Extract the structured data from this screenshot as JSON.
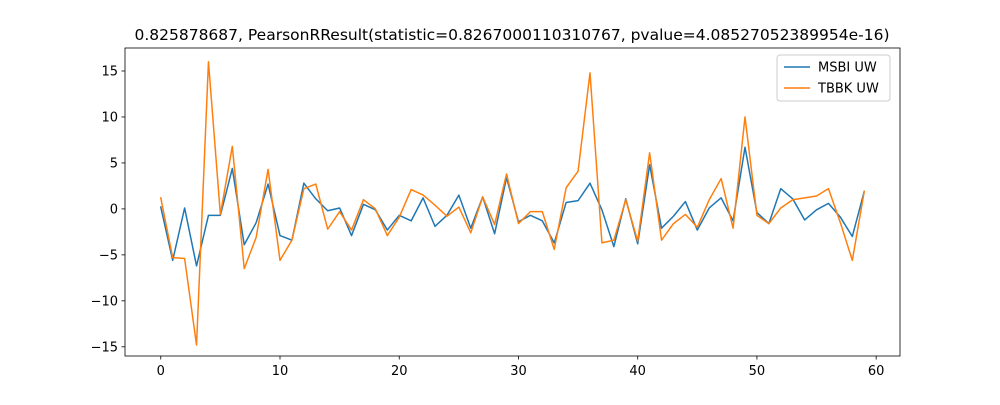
{
  "chart_data": {
    "type": "line",
    "title": "0.825878687, PearsonRResult(statistic=0.8267000110310767, pvalue=4.08527052389954e-16)",
    "xlabel": "",
    "ylabel": "",
    "xlim": [
      -3,
      62
    ],
    "ylim": [
      -16.0,
      17.5
    ],
    "xticks": [
      0,
      10,
      20,
      30,
      40,
      50,
      60
    ],
    "yticks": [
      -15,
      -10,
      -5,
      0,
      5,
      10,
      15
    ],
    "grid": false,
    "legend_position": "top-right",
    "x": [
      0,
      1,
      2,
      3,
      4,
      5,
      6,
      7,
      8,
      9,
      10,
      11,
      12,
      13,
      14,
      15,
      16,
      17,
      18,
      19,
      20,
      21,
      22,
      23,
      24,
      25,
      26,
      27,
      28,
      29,
      30,
      31,
      32,
      33,
      34,
      35,
      36,
      37,
      38,
      39,
      40,
      41,
      42,
      43,
      44,
      45,
      46,
      47,
      48,
      49,
      50,
      51,
      52,
      53,
      54,
      55,
      56,
      57,
      58,
      59
    ],
    "series": [
      {
        "name": "MSBI UW",
        "color": "#1f77b4",
        "values": [
          0.2,
          -5.6,
          0.1,
          -6.2,
          -0.7,
          -0.7,
          4.4,
          -3.9,
          -1.5,
          2.7,
          -2.9,
          -3.4,
          2.8,
          1.1,
          -0.2,
          0.1,
          -2.9,
          0.5,
          -0.1,
          -2.3,
          -0.7,
          -1.3,
          1.2,
          -1.9,
          -0.7,
          1.5,
          -2.1,
          1.3,
          -2.7,
          3.4,
          -1.4,
          -0.7,
          -1.3,
          -3.7,
          0.7,
          0.9,
          2.8,
          -0.1,
          -4.1,
          1.1,
          -3.8,
          4.8,
          -2.1,
          -0.8,
          0.8,
          -2.3,
          0.1,
          1.2,
          -1.3,
          6.7,
          -0.4,
          -1.6,
          2.2,
          1.1,
          -1.2,
          -0.1,
          0.6,
          -0.9,
          -3.0,
          1.9
        ]
      },
      {
        "name": "TBBK UW",
        "color": "#ff7f0e",
        "values": [
          1.2,
          -5.3,
          -5.4,
          -14.8,
          16.0,
          -0.6,
          6.8,
          -6.5,
          -3.1,
          4.3,
          -5.6,
          -3.4,
          2.2,
          2.7,
          -2.2,
          -0.3,
          -2.3,
          1.0,
          0.0,
          -2.9,
          -0.9,
          2.1,
          1.5,
          0.4,
          -0.8,
          0.2,
          -2.6,
          1.3,
          -1.7,
          3.8,
          -1.6,
          -0.3,
          -0.3,
          -4.4,
          2.3,
          4.1,
          14.8,
          -3.7,
          -3.4,
          1.0,
          -3.5,
          6.1,
          -3.4,
          -1.6,
          -0.6,
          -2.0,
          1.0,
          3.3,
          -2.1,
          10.0,
          -0.7,
          -1.6,
          0.1,
          1.0,
          1.2,
          1.4,
          2.2,
          -1.5,
          -5.6,
          1.9
        ]
      }
    ]
  }
}
